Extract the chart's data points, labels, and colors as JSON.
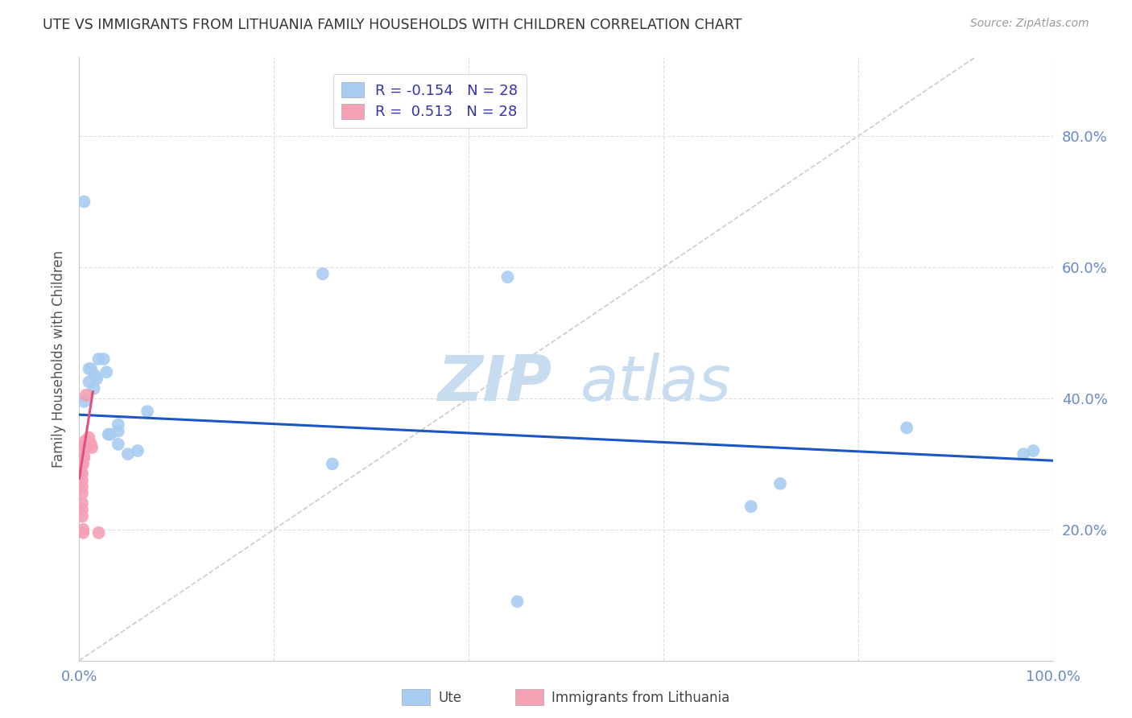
{
  "title": "UTE VS IMMIGRANTS FROM LITHUANIA FAMILY HOUSEHOLDS WITH CHILDREN CORRELATION CHART",
  "source": "Source: ZipAtlas.com",
  "ylabel": "Family Households with Children",
  "x_ticks": [
    0.0,
    0.2,
    0.4,
    0.6,
    0.8,
    1.0
  ],
  "x_ticklabels": [
    "0.0%",
    "",
    "",
    "",
    "",
    "100.0%"
  ],
  "y_ticks": [
    0.0,
    0.2,
    0.4,
    0.6,
    0.8
  ],
  "y_ticklabels": [
    "",
    "20.0%",
    "40.0%",
    "60.0%",
    "80.0%"
  ],
  "ylim": [
    0.0,
    0.92
  ],
  "xlim": [
    0.0,
    1.0
  ],
  "legend_ute_R": "-0.154",
  "legend_ute_N": "28",
  "legend_lit_R": "0.513",
  "legend_lit_N": "28",
  "ute_color": "#A8CCF0",
  "lit_color": "#F4A0B5",
  "ute_line_color": "#1A56C4",
  "lit_line_color": "#E0507A",
  "diagonal_color": "#CCCCCC",
  "background_color": "#FFFFFF",
  "grid_color": "#DDDDDD",
  "axis_color": "#6688CC",
  "watermark_zip": "ZIP",
  "watermark_atlas": "atlas",
  "ute_points": [
    [
      0.005,
      0.7
    ],
    [
      0.005,
      0.395
    ],
    [
      0.01,
      0.425
    ],
    [
      0.01,
      0.445
    ],
    [
      0.012,
      0.445
    ],
    [
      0.015,
      0.415
    ],
    [
      0.016,
      0.435
    ],
    [
      0.018,
      0.43
    ],
    [
      0.02,
      0.46
    ],
    [
      0.025,
      0.46
    ],
    [
      0.028,
      0.44
    ],
    [
      0.03,
      0.345
    ],
    [
      0.032,
      0.345
    ],
    [
      0.04,
      0.35
    ],
    [
      0.04,
      0.36
    ],
    [
      0.04,
      0.33
    ],
    [
      0.05,
      0.315
    ],
    [
      0.06,
      0.32
    ],
    [
      0.07,
      0.38
    ],
    [
      0.25,
      0.59
    ],
    [
      0.26,
      0.3
    ],
    [
      0.44,
      0.585
    ],
    [
      0.45,
      0.09
    ],
    [
      0.69,
      0.235
    ],
    [
      0.72,
      0.27
    ],
    [
      0.85,
      0.355
    ],
    [
      0.97,
      0.315
    ],
    [
      0.98,
      0.32
    ]
  ],
  "lit_points": [
    [
      0.002,
      0.3
    ],
    [
      0.002,
      0.285
    ],
    [
      0.002,
      0.295
    ],
    [
      0.002,
      0.32
    ],
    [
      0.003,
      0.3
    ],
    [
      0.003,
      0.285
    ],
    [
      0.003,
      0.275
    ],
    [
      0.003,
      0.265
    ],
    [
      0.003,
      0.255
    ],
    [
      0.003,
      0.24
    ],
    [
      0.003,
      0.23
    ],
    [
      0.003,
      0.22
    ],
    [
      0.004,
      0.32
    ],
    [
      0.004,
      0.315
    ],
    [
      0.004,
      0.31
    ],
    [
      0.004,
      0.3
    ],
    [
      0.004,
      0.2
    ],
    [
      0.004,
      0.195
    ],
    [
      0.005,
      0.33
    ],
    [
      0.005,
      0.32
    ],
    [
      0.005,
      0.31
    ],
    [
      0.006,
      0.335
    ],
    [
      0.006,
      0.325
    ],
    [
      0.007,
      0.405
    ],
    [
      0.01,
      0.34
    ],
    [
      0.012,
      0.33
    ],
    [
      0.013,
      0.325
    ],
    [
      0.02,
      0.195
    ]
  ],
  "ute_trend_x": [
    0.0,
    1.0
  ],
  "ute_trend_y": [
    0.375,
    0.305
  ],
  "lit_trend_x": [
    0.0,
    0.014
  ],
  "lit_trend_y": [
    0.278,
    0.41
  ]
}
